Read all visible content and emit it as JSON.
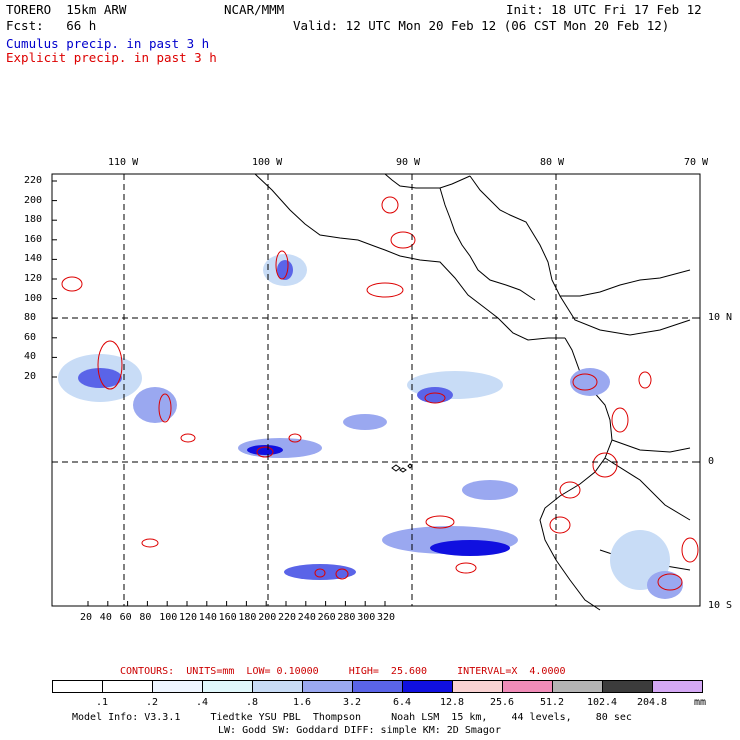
{
  "header": {
    "model": "TORERO  15km ARW",
    "center": "NCAR/MMM",
    "init": "Init: 18 UTC Fri 17 Feb 12",
    "fcst": "Fcst:   66 h",
    "valid": "Valid: 12 UTC Mon 20 Feb 12 (06 CST Mon 20 Feb 12)",
    "cumulus": "Cumulus precip. in past 3 h",
    "explicit": "Explicit precip. in past 3 h"
  },
  "colors": {
    "cumulus": "#0000cc",
    "explicit": "#dd0000",
    "border": "#000000",
    "grid": "#000000"
  },
  "axes": {
    "top_lon": [
      "110 W",
      "100 W",
      "90 W",
      "80 W",
      "70 W"
    ],
    "right_lat": [
      "10 N",
      "0",
      "10 S"
    ],
    "left_y": [
      "220",
      "200",
      "180",
      "160",
      "140",
      "120",
      "100",
      "80",
      "60",
      "40",
      "20"
    ],
    "bottom_x": [
      "20",
      "40",
      "60",
      "80",
      "100",
      "120",
      "140",
      "160",
      "180",
      "200",
      "220",
      "240",
      "260",
      "280",
      "300",
      "320"
    ]
  },
  "contours": {
    "label": "CONTOURS:  UNITS=mm  LOW= 0.10000     HIGH=  25.600     INTERVAL=X  4.0000"
  },
  "colorbar": {
    "levels": [
      ".1",
      ".2",
      ".4",
      ".8",
      "1.6",
      "3.2",
      "6.4",
      "12.8",
      "25.6",
      "51.2",
      "102.4",
      "204.8"
    ],
    "unit": "mm",
    "colors": [
      "#ffffff",
      "#ffffff",
      "#eef5ff",
      "#e0f7fb",
      "#c8dcf6",
      "#9aa8f0",
      "#5a64e8",
      "#1010e0",
      "#f9d2d2",
      "#f08cb8",
      "#b4b4b4",
      "#3c3c3c",
      "#d4a8f4"
    ]
  },
  "footer": {
    "line1": "Model Info: V3.3.1     Tiedtke YSU PBL  Thompson     Noah LSM  15 km,    44 levels,    80 sec",
    "line2": "LW: Godd SW: Goddard DIFF: simple KM: 2D Smagor"
  }
}
